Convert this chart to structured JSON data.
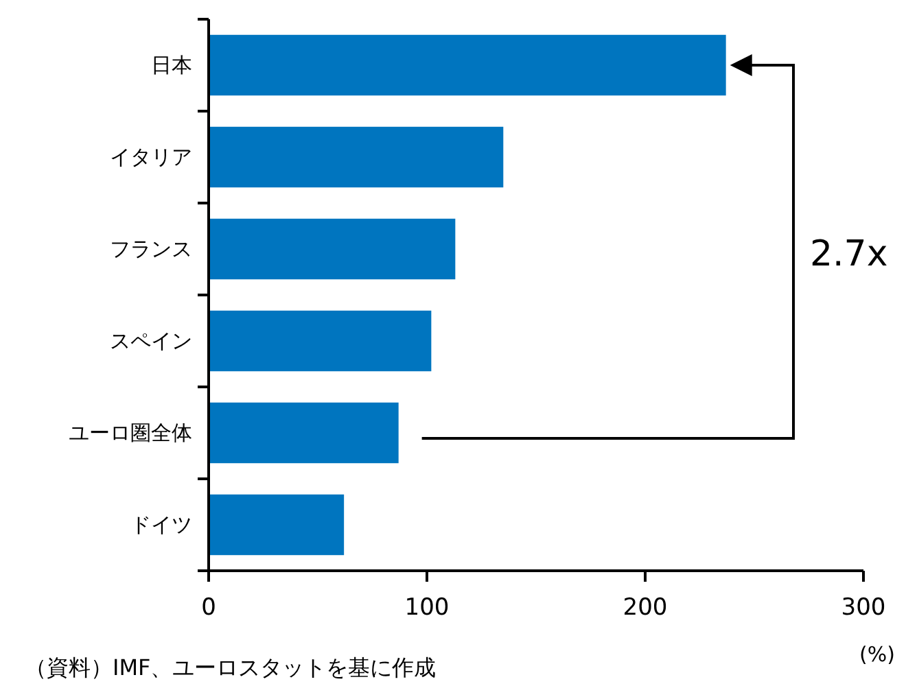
{
  "chart_data": {
    "type": "bar",
    "orientation": "horizontal",
    "categories": [
      "日本",
      "イタリア",
      "フランス",
      "スペイン",
      "ユーロ圏全体",
      "ドイツ"
    ],
    "values": [
      237,
      135,
      113,
      102,
      87,
      62
    ],
    "color": "#0075bf",
    "xlim": [
      0,
      300
    ],
    "xticks": [
      0,
      100,
      200,
      300
    ],
    "xlabel": "(%)",
    "grid": false,
    "annotations": [
      "2.7x",
      "（資料）IMF、ユーロスタットを基に作成"
    ]
  }
}
